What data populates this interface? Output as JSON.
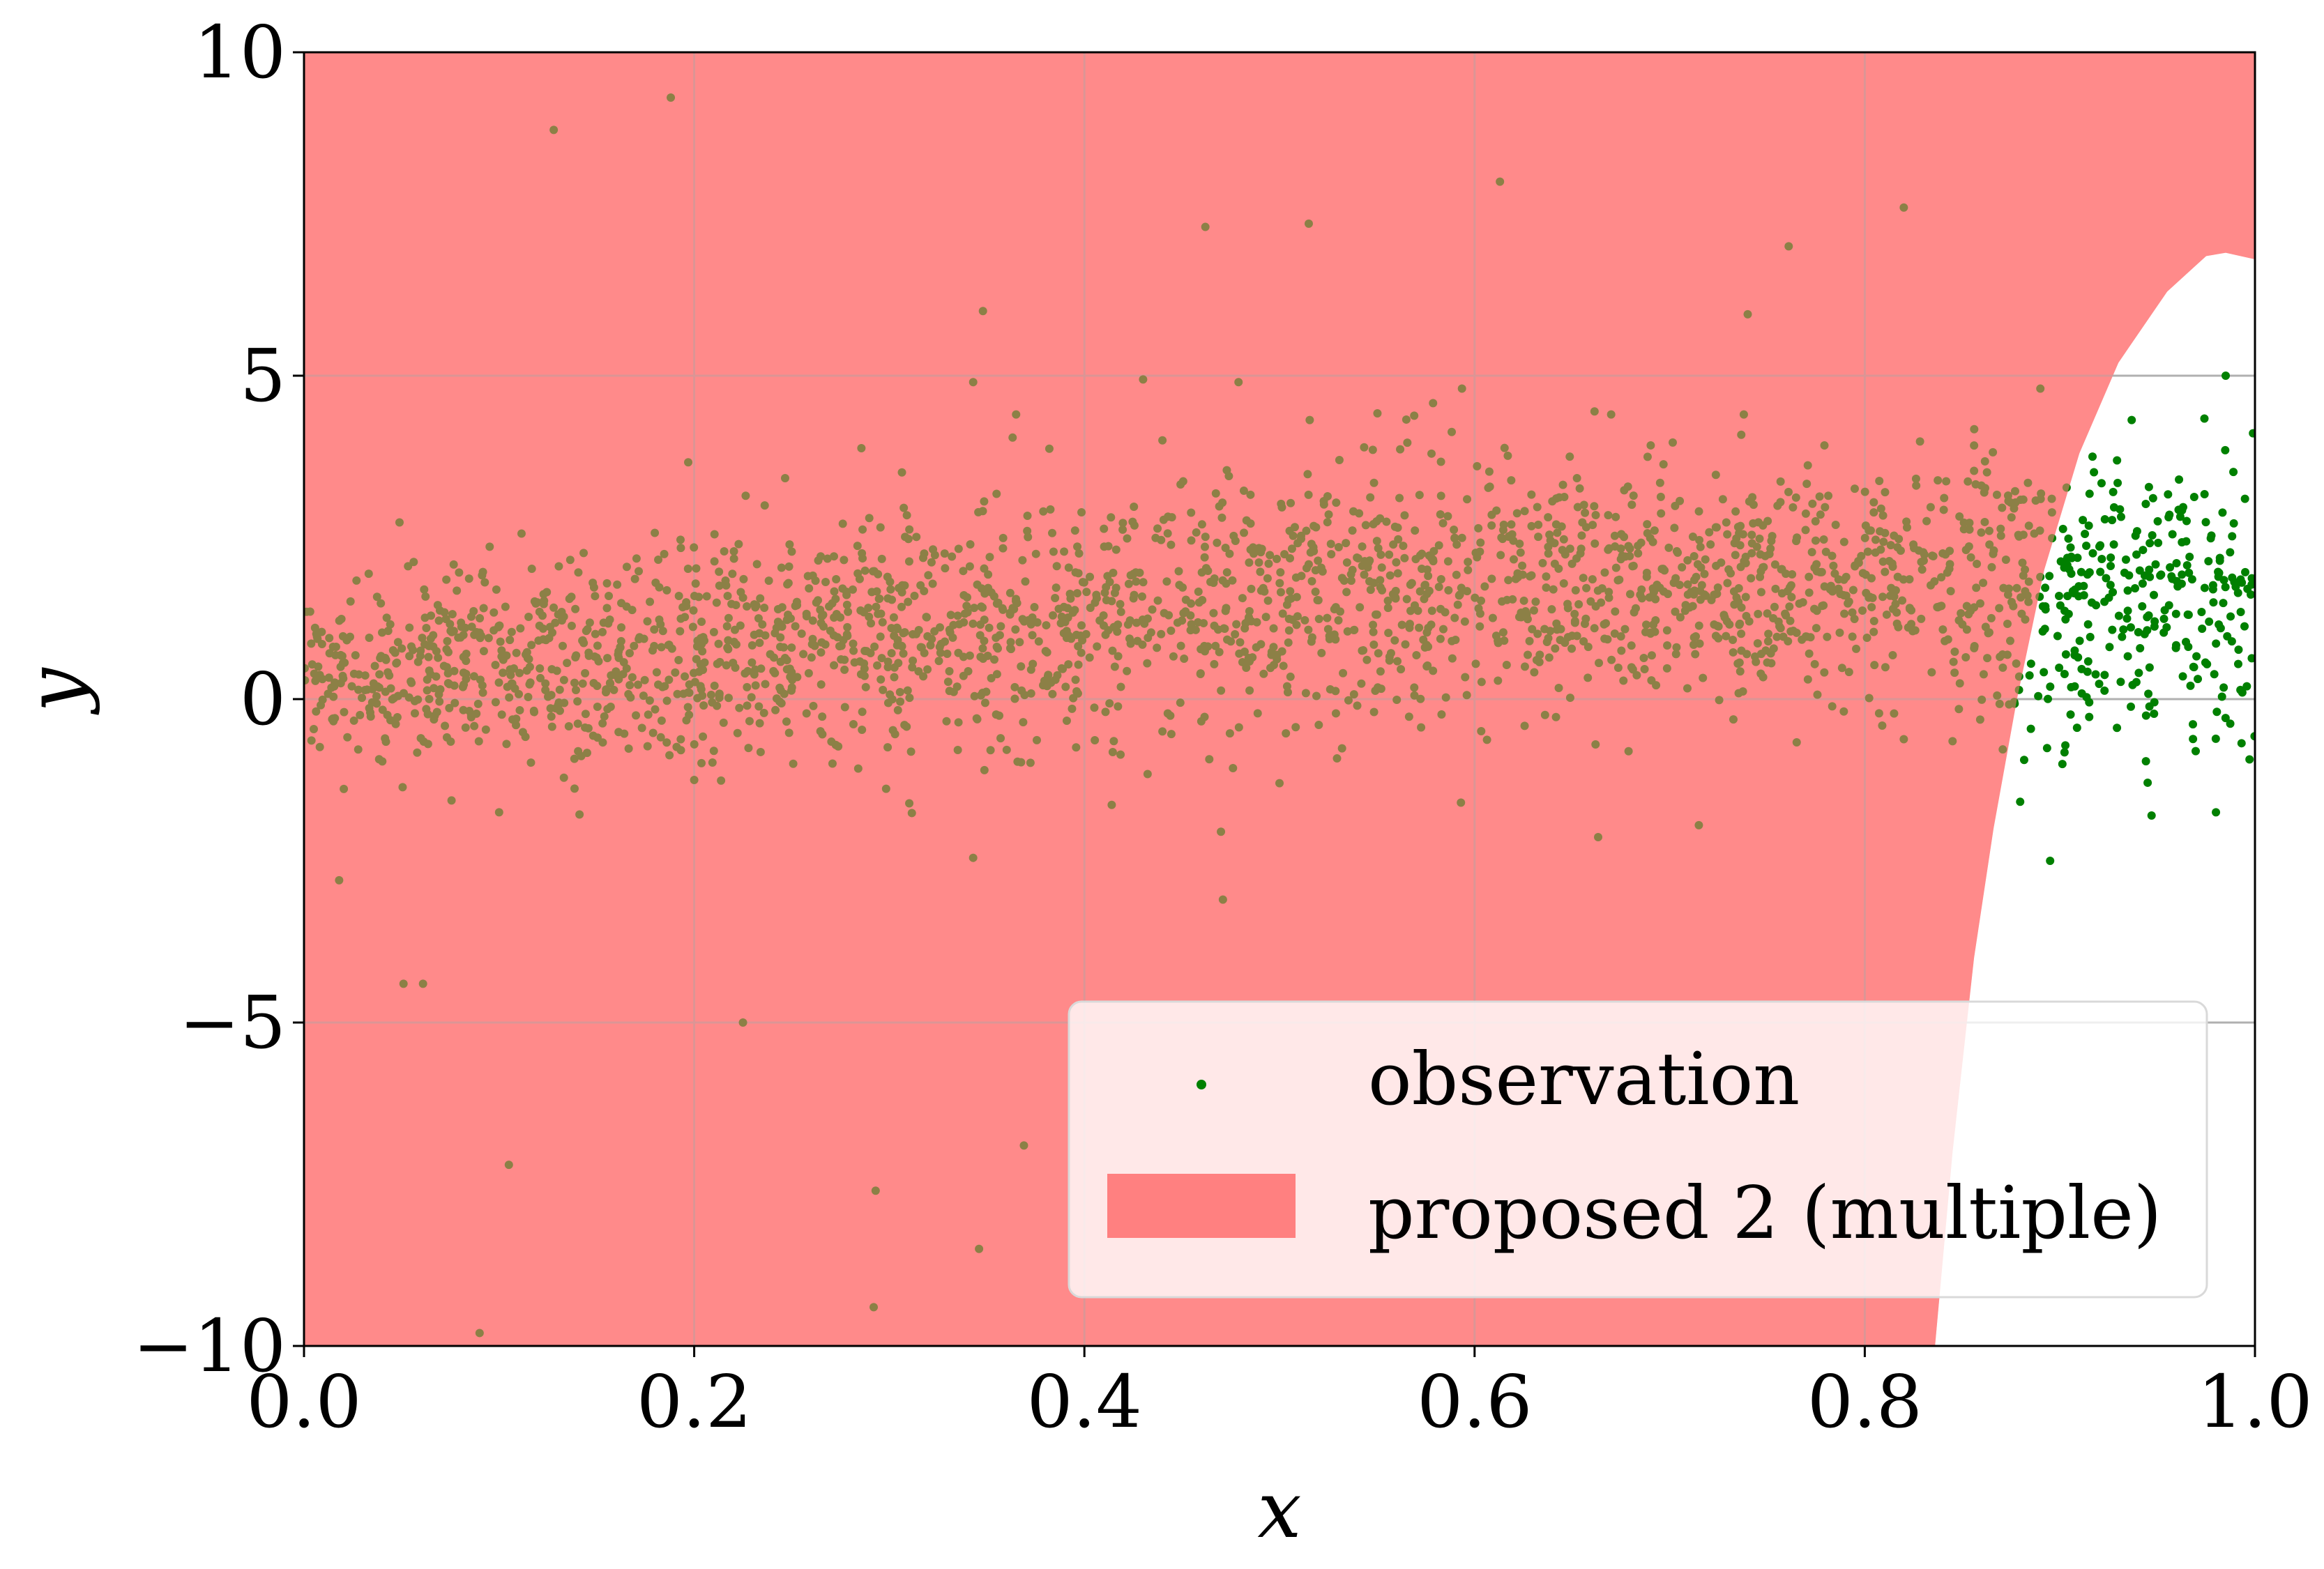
{
  "chart_data": {
    "type": "scatter",
    "xlabel": "x",
    "ylabel": "y",
    "xlim": [
      0.0,
      1.0
    ],
    "ylim": [
      -10,
      10
    ],
    "grid": true,
    "x_ticks": [
      0.0,
      0.2,
      0.4,
      0.6,
      0.8,
      1.0
    ],
    "x_tick_labels": [
      "0.0",
      "0.2",
      "0.4",
      "0.6",
      "0.8",
      "1.0"
    ],
    "y_ticks": [
      -10,
      -5,
      0,
      5,
      10
    ],
    "y_tick_labels": [
      "−10",
      "−5",
      "0",
      "5",
      "10"
    ],
    "legend_placement": "lower-right",
    "legend": [
      {
        "label": "observation",
        "kind": "marker",
        "color": "#008000"
      },
      {
        "label": "proposed 2 (multiple)",
        "kind": "patch",
        "color": "#ff8080"
      }
    ],
    "colors": {
      "region_fill": "#ff8080",
      "region_alpha": 0.82,
      "point": "#008000",
      "grid": "#b0b0b0",
      "legend_bg": "#ffffff"
    },
    "region_boundary": [
      [
        0.836,
        -10
      ],
      [
        0.845,
        -7
      ],
      [
        0.856,
        -4
      ],
      [
        0.866,
        -2
      ],
      [
        0.878,
        0
      ],
      [
        0.892,
        2
      ],
      [
        0.91,
        3.8
      ],
      [
        0.93,
        5.2
      ],
      [
        0.955,
        6.3
      ],
      [
        0.975,
        6.85
      ],
      [
        0.985,
        6.9
      ],
      [
        1.0,
        6.8
      ]
    ],
    "outliers": [
      [
        0.128,
        8.8
      ],
      [
        0.188,
        9.3
      ],
      [
        0.462,
        7.3
      ],
      [
        0.515,
        7.35
      ],
      [
        0.613,
        8.0
      ],
      [
        0.82,
        7.6
      ],
      [
        0.761,
        7.0
      ],
      [
        0.348,
        6.0
      ],
      [
        0.74,
        5.95
      ],
      [
        0.479,
        4.9
      ],
      [
        0.051,
        -4.4
      ],
      [
        0.061,
        -4.4
      ],
      [
        0.018,
        -2.8
      ],
      [
        0.225,
        -5.0
      ],
      [
        0.105,
        -7.2
      ],
      [
        0.09,
        -9.8
      ],
      [
        0.293,
        -7.6
      ],
      [
        0.292,
        -9.4
      ],
      [
        0.346,
        -8.5
      ],
      [
        0.369,
        -6.9
      ],
      [
        0.471,
        -3.1
      ],
      [
        0.47,
        -2.05
      ],
      [
        0.1,
        -1.75
      ],
      [
        0.2,
        -1.25
      ],
      [
        0.593,
        -1.6
      ],
      [
        0.662,
        -0.7
      ],
      [
        0.82,
        -0.62
      ],
      [
        0.845,
        -0.65
      ],
      [
        0.895,
        -2.5
      ],
      [
        0.947,
        -1.8
      ],
      [
        0.98,
        -1.75
      ],
      [
        0.44,
        -0.5
      ],
      [
        0.5,
        -1.3
      ],
      [
        0.89,
        4.8
      ],
      [
        0.985,
        5.0
      ],
      [
        0.343,
        4.9
      ],
      [
        0.365,
        4.4
      ],
      [
        0.44,
        4.0
      ],
      [
        0.738,
        4.4
      ],
      [
        0.67,
        4.4
      ]
    ],
    "generator": {
      "n_points": 2600,
      "seed": 12345,
      "mean_curve": [
        [
          0.0,
          0.3
        ],
        [
          0.2,
          0.8
        ],
        [
          0.4,
          1.3
        ],
        [
          0.6,
          1.8
        ],
        [
          0.8,
          1.75
        ],
        [
          1.0,
          1.6
        ]
      ],
      "spread_curve": [
        [
          0.0,
          0.6
        ],
        [
          0.2,
          0.9
        ],
        [
          0.4,
          0.95
        ],
        [
          0.6,
          0.95
        ],
        [
          0.8,
          0.9
        ],
        [
          1.0,
          1.2
        ]
      ]
    }
  }
}
